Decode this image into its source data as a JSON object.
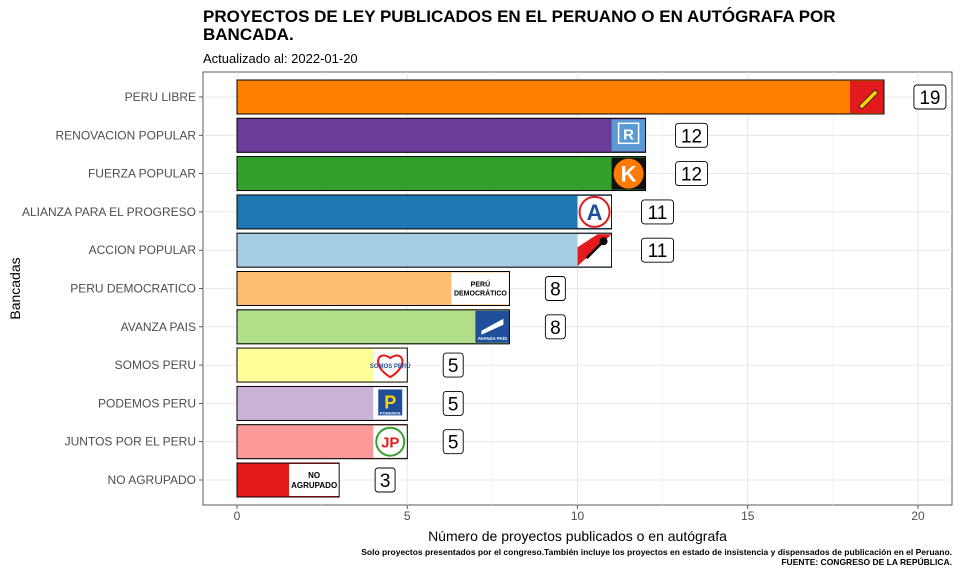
{
  "chart_data": {
    "type": "bar",
    "orientation": "horizontal",
    "title": "PROYECTOS DE LEY PUBLICADOS EN EL PERUANO O EN AUTÓGRAFA POR BANCADA.",
    "subtitle": "Actualizado al: 2022-01-20",
    "xlabel": "Número de proyectos publicados o en autógrafa",
    "ylabel": "Bancadas",
    "xlim": [
      -1,
      21
    ],
    "xticks": [
      0,
      5,
      10,
      15,
      20
    ],
    "grid": true,
    "categories": [
      "PERU LIBRE",
      "RENOVACION POPULAR",
      "FUERZA POPULAR",
      "ALIANZA PARA EL PROGRESO",
      "ACCION POPULAR",
      "PERU DEMOCRATICO",
      "AVANZA PAIS",
      "SOMOS PERU",
      "PODEMOS PERU",
      "JUNTOS POR EL PERU",
      "NO AGRUPADO"
    ],
    "values": [
      19,
      12,
      12,
      11,
      11,
      8,
      8,
      5,
      5,
      5,
      3
    ],
    "colors": [
      "#ff7f00",
      "#6a3d9a",
      "#33a02c",
      "#1f78b4",
      "#a6cee3",
      "#fdbf6f",
      "#b2df8a",
      "#ffff99",
      "#cab2d6",
      "#fb9a99",
      "#e31a1c"
    ],
    "logo_texts": [
      "",
      "",
      "",
      "",
      "",
      "PERÚ DEMOCRÁTICO",
      "AVANZA PAÍS",
      "SOMOS PERÚ",
      "PODEMOS",
      "",
      "NO AGRUPADO"
    ],
    "caption": "Solo proyectos presentados por el congreso.También incluye los proyectos en estado de insistencia y dispensados de publicación en el Peruano.",
    "source": "FUENTE: CONGRESO DE LA REPÚBLICA."
  }
}
